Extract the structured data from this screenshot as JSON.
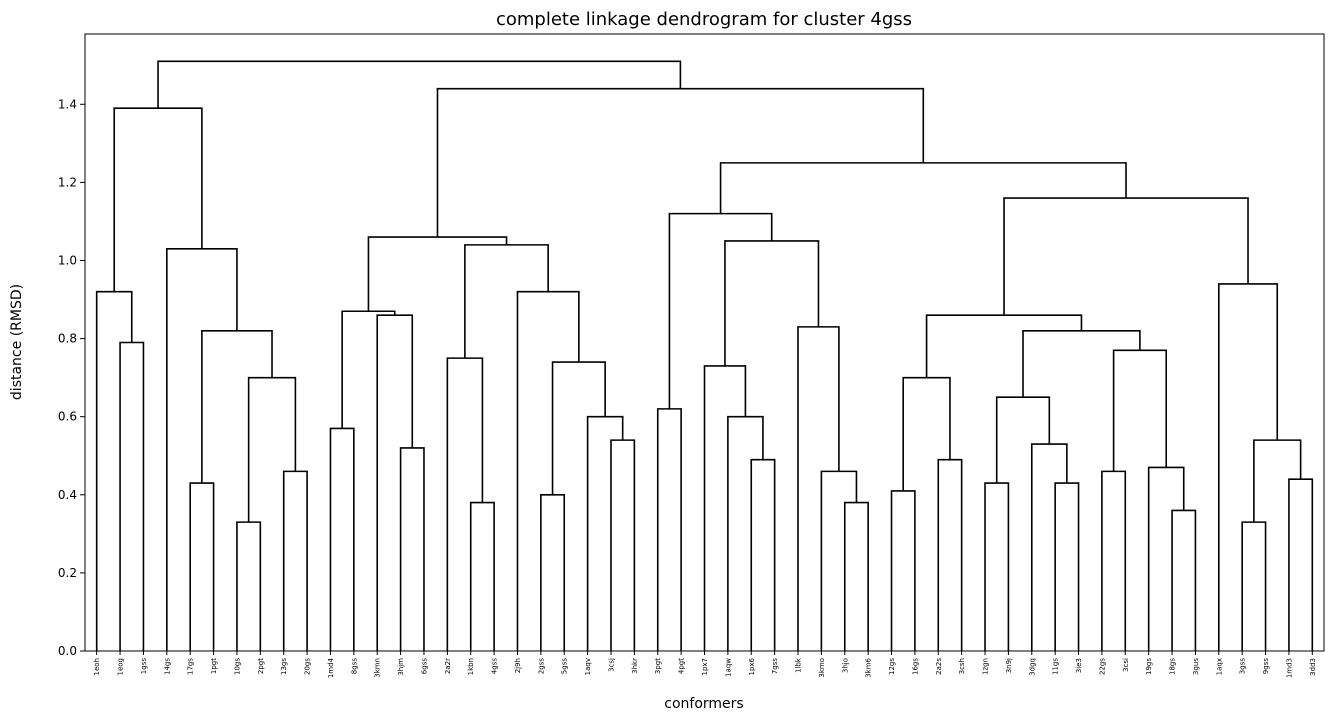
{
  "chart_data": {
    "type": "dendrogram",
    "title": "complete linkage dendrogram for cluster 4gss",
    "xlabel": "conformers",
    "ylabel": "distance (RMSD)",
    "ylim": [
      0,
      1.58
    ],
    "yticks": [
      "0.0",
      "0.2",
      "0.4",
      "0.6",
      "0.8",
      "1.0",
      "1.2",
      "1.4"
    ],
    "grid": false,
    "line_color": "#000000",
    "leaves": [
      "1eoh",
      "1eog",
      "1gss",
      "14gs",
      "17gs",
      "1pgt",
      "10gs",
      "2pgt",
      "13gs",
      "20gs",
      "1md4",
      "8gss",
      "3kmn",
      "3hjm",
      "6gss",
      "2a2r",
      "1kbn",
      "4gss",
      "2j9h",
      "2gss",
      "5gss",
      "1aqv",
      "3csj",
      "3hkr",
      "3pgt",
      "4pgt",
      "1px7",
      "1aqw",
      "1px6",
      "7gss",
      "1lbk",
      "3kmo",
      "3hjo",
      "3km6",
      "12gs",
      "16gs",
      "2a2s",
      "3csh",
      "1zgn",
      "3n9j",
      "3dgq",
      "11gs",
      "3ie3",
      "22gs",
      "3csi",
      "19gs",
      "18gs",
      "3gus",
      "1aqx",
      "3gss",
      "9gss",
      "1md3",
      "3dd3"
    ],
    "merges": [
      [
        "1eog",
        "1gss",
        0.79
      ],
      [
        "1eoh",
        "c0",
        0.92
      ],
      [
        "13gs",
        "20gs",
        0.46
      ],
      [
        "10gs",
        "2pgt",
        0.33
      ],
      [
        "c3",
        "c2",
        0.7
      ],
      [
        "17gs",
        "1pgt",
        0.43
      ],
      [
        "c5",
        "c4",
        0.82
      ],
      [
        "14gs",
        "c6",
        1.03
      ],
      [
        "c1",
        "c7",
        1.39
      ],
      [
        "3hjm",
        "6gss",
        0.52
      ],
      [
        "3kmn",
        "c9",
        0.86
      ],
      [
        "1md4",
        "8gss",
        0.57
      ],
      [
        "c11",
        "c10",
        0.87
      ],
      [
        "1kbn",
        "4gss",
        0.38
      ],
      [
        "2a2r",
        "c13",
        0.75
      ],
      [
        "3csj",
        "3hkr",
        0.54
      ],
      [
        "1aqv",
        "c15",
        0.6
      ],
      [
        "2gss",
        "5gss",
        0.4
      ],
      [
        "c17",
        "c16",
        0.74
      ],
      [
        "2j9h",
        "c18",
        0.92
      ],
      [
        "c14",
        "c19",
        1.04
      ],
      [
        "c12",
        "c20",
        1.06
      ],
      [
        "3pgt",
        "4pgt",
        0.62
      ],
      [
        "1px6",
        "7gss",
        0.49
      ],
      [
        "1aqw",
        "c23",
        0.6
      ],
      [
        "1px7",
        "c24",
        0.73
      ],
      [
        "3hjo",
        "3km6",
        0.38
      ],
      [
        "3kmo",
        "c26",
        0.46
      ],
      [
        "1lbk",
        "c27",
        0.83
      ],
      [
        "c25",
        "c28",
        1.05
      ],
      [
        "c22",
        "c29",
        1.12
      ],
      [
        "2a2s",
        "3csh",
        0.49
      ],
      [
        "12gs",
        "16gs",
        0.41
      ],
      [
        "c32",
        "c31",
        0.7
      ],
      [
        "11gs",
        "3ie3",
        0.43
      ],
      [
        "3dgq",
        "c34",
        0.53
      ],
      [
        "1zgn",
        "3n9j",
        0.43
      ],
      [
        "c36",
        "c35",
        0.65
      ],
      [
        "18gs",
        "3gus",
        0.36
      ],
      [
        "19gs",
        "c38",
        0.47
      ],
      [
        "22gs",
        "3csi",
        0.46
      ],
      [
        "c40",
        "c39",
        0.77
      ],
      [
        "c37",
        "c41",
        0.82
      ],
      [
        "c33",
        "c42",
        0.86
      ],
      [
        "1md3",
        "3dd3",
        0.44
      ],
      [
        "3gss",
        "9gss",
        0.33
      ],
      [
        "c45",
        "c44",
        0.54
      ],
      [
        "1aqx",
        "c46",
        0.94
      ],
      [
        "c43",
        "c47",
        1.16
      ],
      [
        "c30",
        "c48",
        1.25
      ],
      [
        "c21",
        "c49",
        1.44
      ],
      [
        "c8",
        "c50",
        1.51
      ]
    ]
  }
}
